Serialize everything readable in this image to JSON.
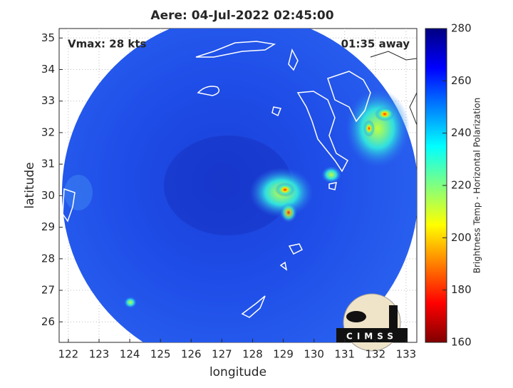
{
  "title": "Aere: 04-Jul-2022 02:45:00",
  "annotations": {
    "vmax": "Vmax: 28 kts",
    "time_away": "01:35 away"
  },
  "x_axis": {
    "label": "longitude",
    "lim": [
      121.7,
      133.35
    ],
    "ticks": [
      122,
      123,
      124,
      125,
      126,
      127,
      128,
      129,
      130,
      131,
      132,
      133
    ]
  },
  "y_axis": {
    "label": "latitude",
    "lim": [
      25.35,
      35.3
    ],
    "ticks": [
      26,
      27,
      28,
      29,
      30,
      31,
      32,
      33,
      34,
      35
    ]
  },
  "colorbar": {
    "label": "Brightness Temp - Horizontal Polarization",
    "lim": [
      160,
      280
    ],
    "ticks": [
      160,
      180,
      200,
      220,
      240,
      260,
      280
    ]
  },
  "logo": "CIMSS"
}
